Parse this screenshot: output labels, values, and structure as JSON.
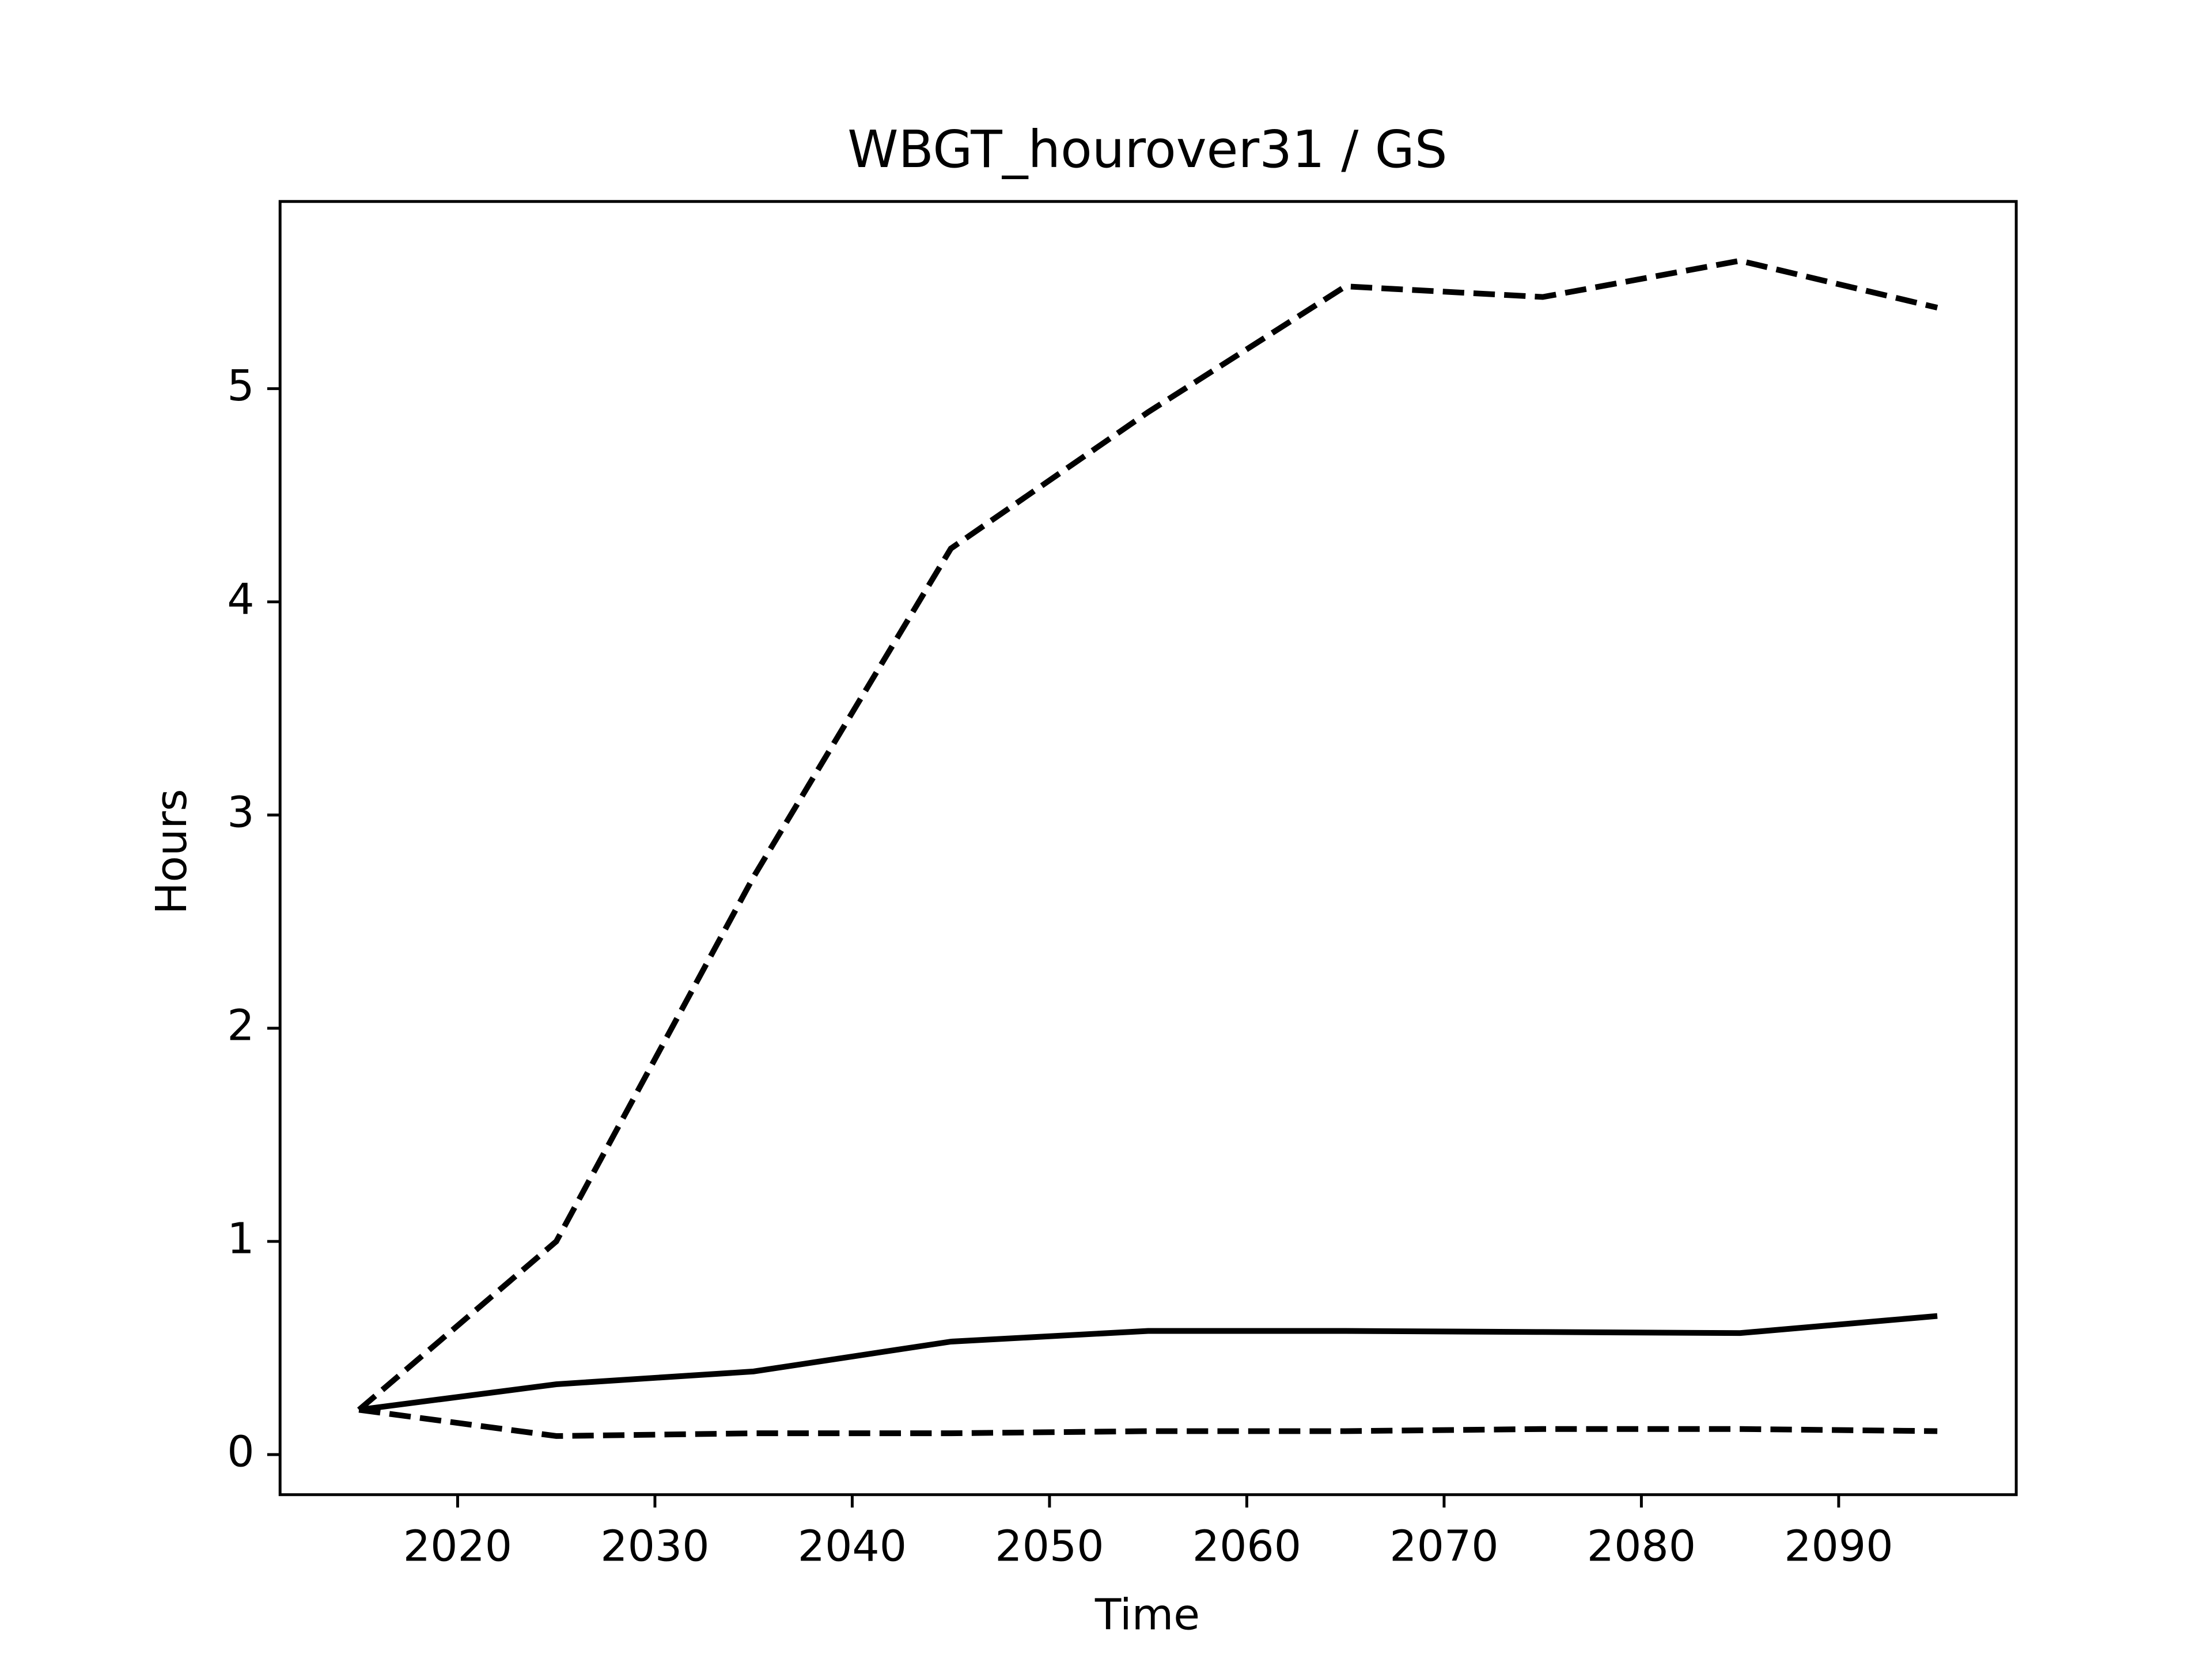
{
  "chart_data": {
    "type": "line",
    "title": "WBGT_hourover31 / GS",
    "xlabel": "Time",
    "ylabel": "Hours",
    "x": [
      2015,
      2025,
      2035,
      2045,
      2055,
      2065,
      2075,
      2085,
      2095
    ],
    "series": [
      {
        "color": "#000000",
        "linestyle": "dashed",
        "values": [
          0.21,
          1.0,
          2.71,
          4.25,
          4.89,
          5.48,
          5.43,
          5.6,
          5.38
        ]
      },
      {
        "color": "#000000",
        "linestyle": "solid",
        "values": [
          0.21,
          0.33,
          0.39,
          0.53,
          0.58,
          0.58,
          0.575,
          0.57,
          0.65
        ]
      },
      {
        "color": "#000000",
        "linestyle": "dashed",
        "values": [
          0.21,
          0.087,
          0.1,
          0.1,
          0.11,
          0.11,
          0.12,
          0.12,
          0.11
        ]
      }
    ],
    "xlim": [
      2011,
      2099
    ],
    "ylim": [
      -0.188,
      5.878
    ],
    "xticks": [
      2020,
      2030,
      2040,
      2050,
      2060,
      2070,
      2080,
      2090
    ],
    "yticks": [
      0,
      1,
      2,
      3,
      4,
      5
    ],
    "grid": false
  }
}
